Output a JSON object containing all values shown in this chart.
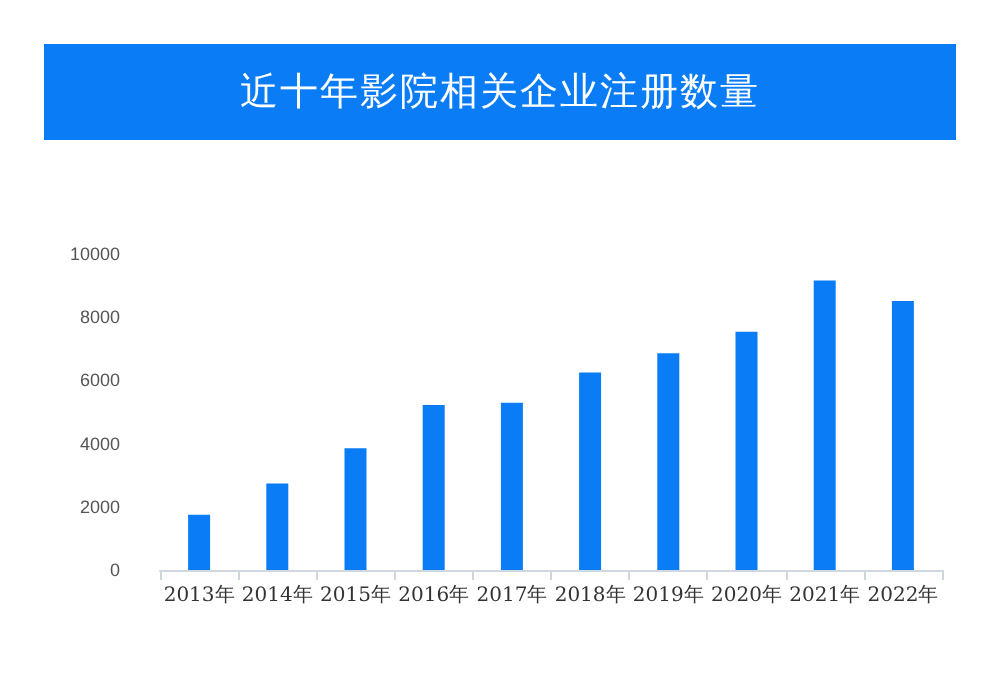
{
  "chart_data": {
    "type": "bar",
    "title": "近十年影院相关企业注册数量",
    "categories": [
      "2013年",
      "2014年",
      "2015年",
      "2016年",
      "2017年",
      "2018年",
      "2019年",
      "2020年",
      "2021年",
      "2022年"
    ],
    "values": [
      1750,
      2740,
      3850,
      5220,
      5290,
      6250,
      6860,
      7540,
      9160,
      8510
    ],
    "color": "#0a7cf5",
    "ylim": [
      0,
      10000
    ],
    "yticks": [
      0,
      2000,
      4000,
      6000,
      8000,
      10000
    ]
  }
}
